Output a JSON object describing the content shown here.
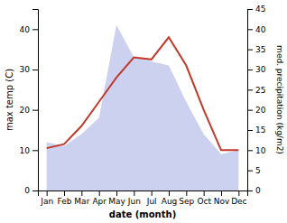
{
  "chart_data": {
    "type": "line",
    "categories": [
      "Jan",
      "Feb",
      "Mar",
      "Apr",
      "May",
      "Jun",
      "Jul",
      "Aug",
      "Sep",
      "Oct",
      "Nov",
      "Dec"
    ],
    "series": [
      {
        "type": "line",
        "color": "#c0392b",
        "values": [
          10.5,
          11.5,
          16,
          22,
          28,
          33,
          32.5,
          38,
          31,
          20,
          10,
          10
        ]
      },
      {
        "type": "area",
        "color": "#b0b8e8",
        "axis": "y2",
        "values": [
          12,
          11,
          14,
          18,
          41,
          33,
          32,
          31,
          22,
          14,
          9,
          10
        ]
      }
    ],
    "xlabel": "date (month)",
    "ylabel": "max temp (C)",
    "y2label": "med. precipitation (kg/m2)",
    "ylim": [
      0,
      45
    ],
    "yticks": [
      0,
      10,
      20,
      30,
      40
    ],
    "y2lim": [
      0,
      45
    ],
    "y2ticks": [
      0,
      5,
      10,
      15,
      20,
      25,
      30,
      35,
      40,
      45
    ],
    "grid": false
  }
}
